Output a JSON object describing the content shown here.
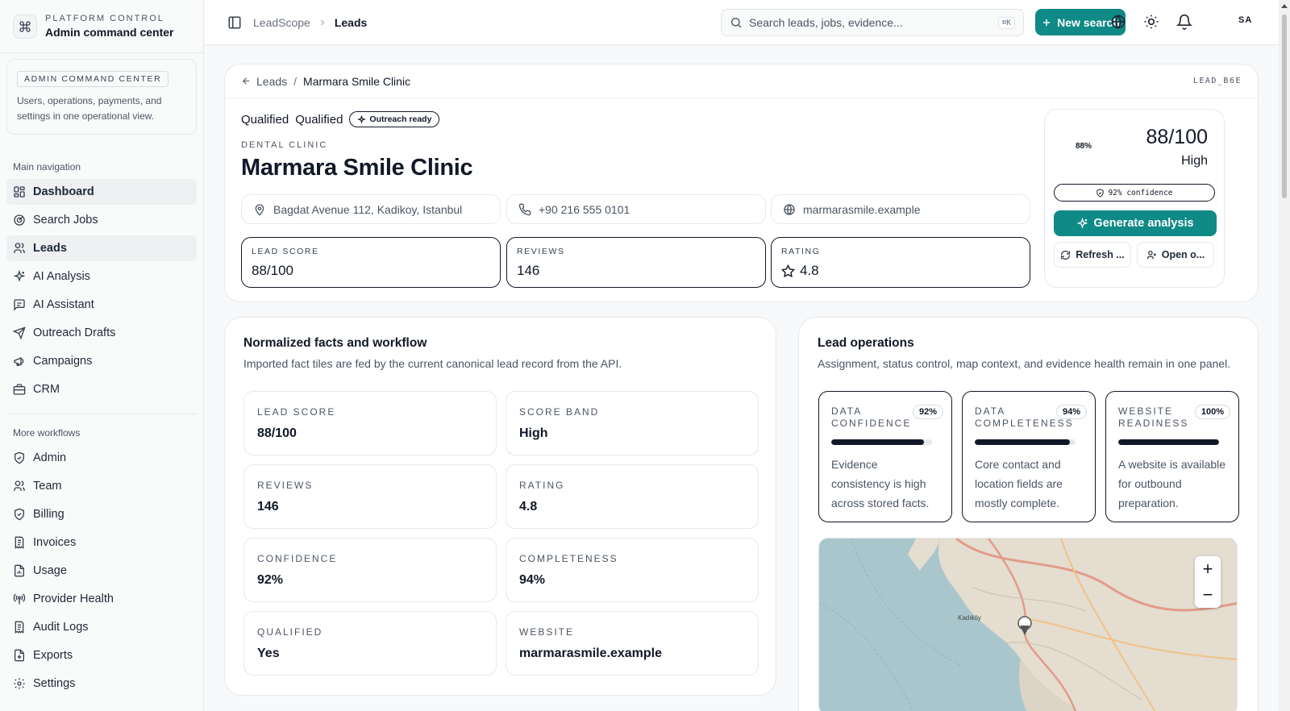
{
  "brand": {
    "eyebrow": "PLATFORM CONTROL",
    "title": "Admin command center"
  },
  "admin_card": {
    "badge": "ADMIN COMMAND CENTER",
    "description": "Users, operations, payments, and settings in one operational view."
  },
  "nav": {
    "main_title": "Main navigation",
    "main_items": [
      {
        "label": "Dashboard",
        "icon": "dashboard-icon"
      },
      {
        "label": "Search Jobs",
        "icon": "radar-icon"
      },
      {
        "label": "Leads",
        "icon": "users-icon"
      },
      {
        "label": "AI Analysis",
        "icon": "sparkles-icon"
      },
      {
        "label": "AI Assistant",
        "icon": "message-icon"
      },
      {
        "label": "Outreach Drafts",
        "icon": "send-icon"
      },
      {
        "label": "Campaigns",
        "icon": "megaphone-icon"
      },
      {
        "label": "CRM",
        "icon": "briefcase-icon"
      }
    ],
    "more_title": "More workflows",
    "more_items": [
      {
        "label": "Admin",
        "icon": "shield-icon"
      },
      {
        "label": "Team",
        "icon": "users-icon"
      },
      {
        "label": "Billing",
        "icon": "shield-icon"
      },
      {
        "label": "Invoices",
        "icon": "receipt-icon"
      },
      {
        "label": "Usage",
        "icon": "file-chart-icon"
      },
      {
        "label": "Provider Health",
        "icon": "antenna-icon"
      },
      {
        "label": "Audit Logs",
        "icon": "receipt-icon"
      },
      {
        "label": "Exports",
        "icon": "file-download-icon"
      },
      {
        "label": "Settings",
        "icon": "gear-icon"
      }
    ]
  },
  "topbar": {
    "crumb_root": "LeadScope",
    "crumb_current": "Leads",
    "search_placeholder": "Search leads, jobs, evidence...",
    "search_shortcut": "⌘K",
    "new_search_label": "New search",
    "avatar_initials": "SA"
  },
  "lead": {
    "back_label": "Leads",
    "breadcrumb_current": "Marmara Smile Clinic",
    "lead_id": "LEAD_B6E",
    "status_1": "Qualified",
    "status_2": "Qualified",
    "outreach_badge": "Outreach ready",
    "category": "DENTAL CLINIC",
    "name": "Marmara Smile Clinic",
    "address": "Bagdat Avenue 112, Kadikoy, Istanbul",
    "phone": "+90 216 555 0101",
    "website": "marmarasmile.example",
    "stats": [
      {
        "label": "LEAD SCORE",
        "value": "88/100"
      },
      {
        "label": "REVIEWS",
        "value": "146"
      },
      {
        "label": "RATING",
        "value": "4.8"
      }
    ],
    "score_card": {
      "percent_label": "88%",
      "score": "88/100",
      "band": "High",
      "confidence": "92% confidence",
      "generate_label": "Generate analysis",
      "refresh_label": "Refresh ...",
      "open_label": "Open o..."
    }
  },
  "facts_panel": {
    "title": "Normalized facts and workflow",
    "subtitle": "Imported fact tiles are fed by the current canonical lead record from the API.",
    "facts": [
      {
        "label": "LEAD SCORE",
        "value": "88/100"
      },
      {
        "label": "SCORE BAND",
        "value": "High"
      },
      {
        "label": "REVIEWS",
        "value": "146"
      },
      {
        "label": "RATING",
        "value": "4.8"
      },
      {
        "label": "CONFIDENCE",
        "value": "92%"
      },
      {
        "label": "COMPLETENESS",
        "value": "94%"
      },
      {
        "label": "QUALIFIED",
        "value": "Yes"
      },
      {
        "label": "WEBSITE",
        "value": "marmarasmile.example"
      }
    ]
  },
  "ops_panel": {
    "title": "Lead operations",
    "subtitle": "Assignment, status control, map context, and evidence health remain in one panel.",
    "metrics": [
      {
        "label": "DATA CONFIDENCE",
        "badge": "92%",
        "fill": 0.92,
        "desc": "Evidence consistency is high across stored facts."
      },
      {
        "label": "DATA COMPLETENESS",
        "badge": "94%",
        "fill": 0.94,
        "desc": "Core contact and location fields are mostly complete."
      },
      {
        "label": "WEBSITE READINESS",
        "badge": "100%",
        "fill": 1.0,
        "desc": "A website is available for outbound preparation."
      }
    ],
    "map": {
      "zoom_in": "+",
      "zoom_out": "−",
      "place_label": "Kadıköy"
    }
  },
  "colors": {
    "accent": "#0f8a86",
    "ink": "#111827",
    "muted": "#4b5563",
    "border": "#e6e8eb"
  }
}
